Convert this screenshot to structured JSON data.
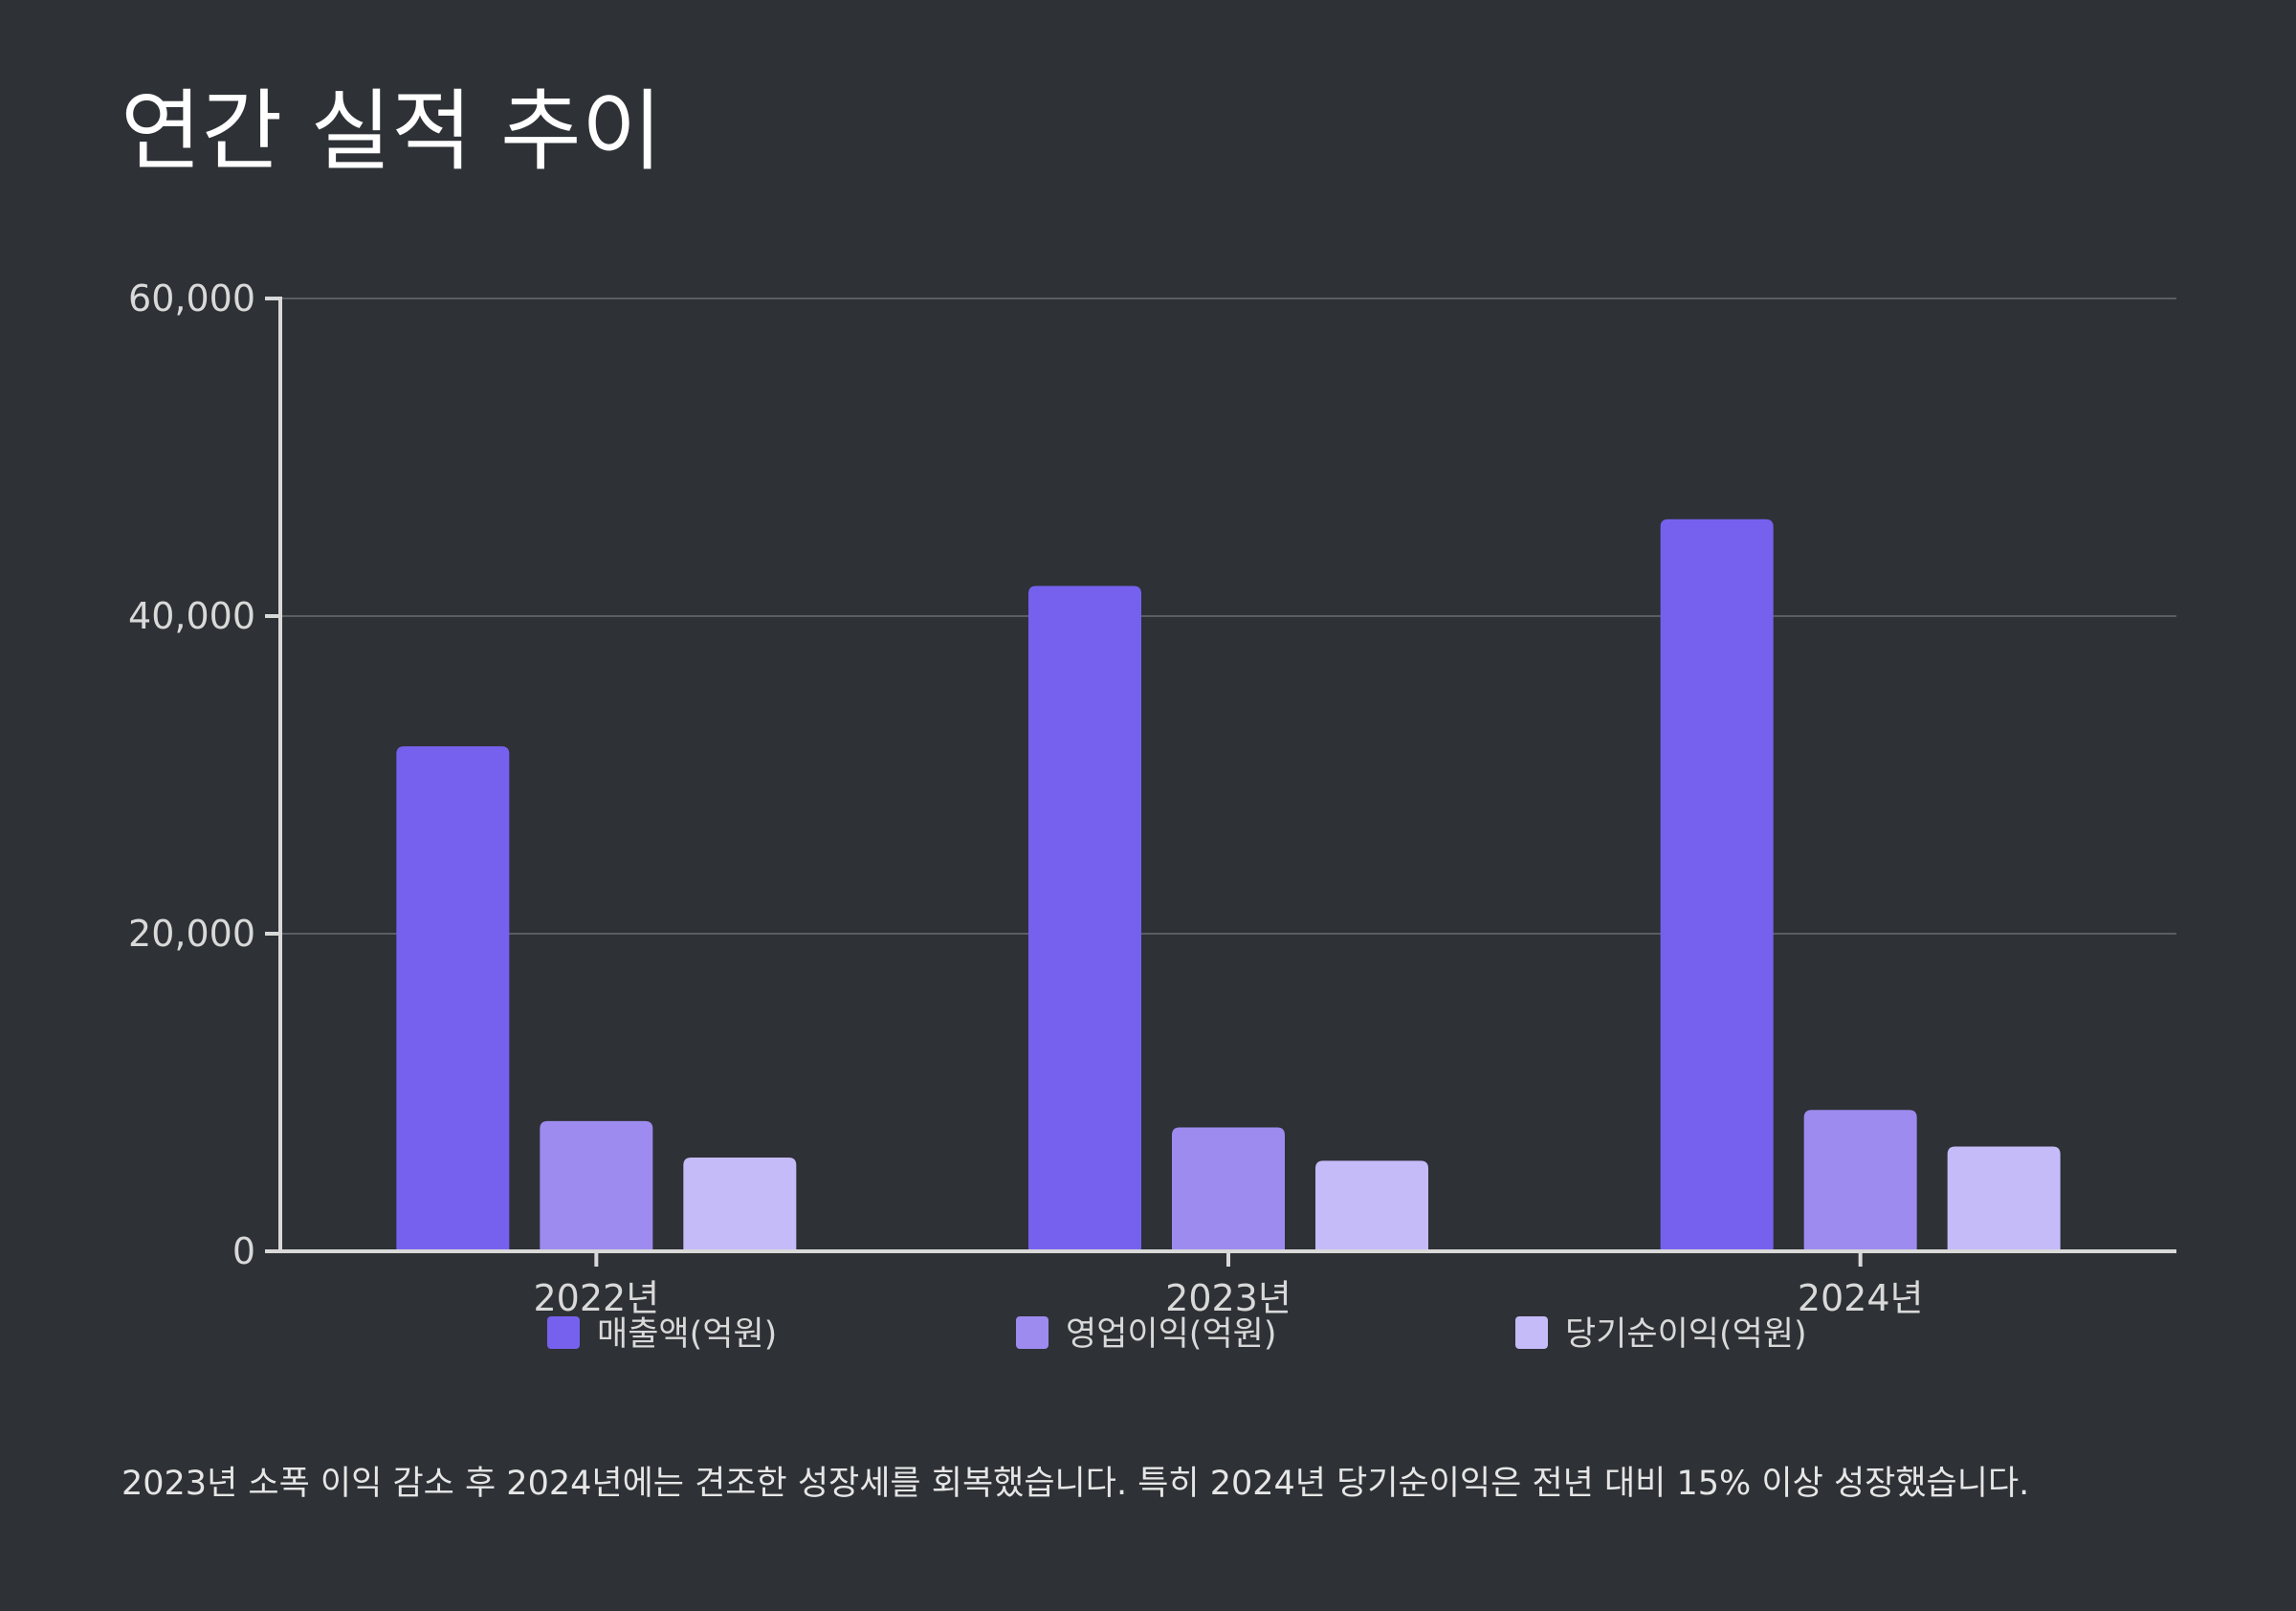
{
  "title": "연간 실적 추이",
  "caption": "2023년 소폭 이익 감소 후 2024년에는 견조한 성장세를 회복했습니다. 특히 2024년 당기순이익은 전년 대비 15% 이상 성장했습니다.",
  "colors": {
    "background": "#2e3135",
    "axis": "#d9d9d9",
    "grid": "#5a5d61"
  },
  "chart_data": {
    "type": "bar",
    "title": "연간 실적 추이",
    "categories": [
      "2022년",
      "2023년",
      "2024년"
    ],
    "series": [
      {
        "name": "매출액(억원)",
        "color": "#7661ee",
        "values": [
          31800,
          41900,
          46100
        ]
      },
      {
        "name": "영업이익(억원)",
        "color": "#9e8bef",
        "values": [
          8200,
          7800,
          8900
        ]
      },
      {
        "name": "당기순이익(억원)",
        "color": "#c6bbf9",
        "values": [
          5900,
          5700,
          6600
        ]
      }
    ],
    "ylim": [
      0,
      60000
    ],
    "yticks": [
      0,
      20000,
      40000,
      60000
    ],
    "ytick_labels": [
      "0",
      "20,000",
      "40,000",
      "60,000"
    ],
    "grid": true,
    "legend_position": "bottom"
  }
}
